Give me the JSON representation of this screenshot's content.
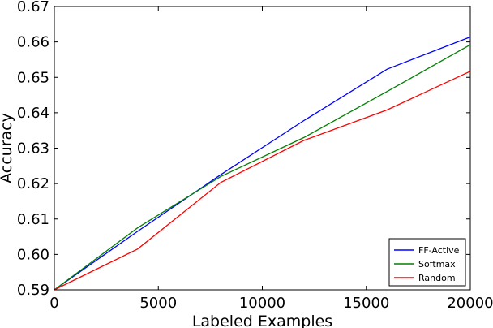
{
  "chart_data": {
    "type": "line",
    "title": "",
    "xlabel": "Labeled Examples",
    "ylabel": "Accuracy",
    "xlim": [
      0,
      20000
    ],
    "ylim": [
      0.59,
      0.67
    ],
    "xticks": [
      0,
      5000,
      10000,
      15000,
      20000
    ],
    "xtick_labels": [
      "0",
      "5000",
      "10000",
      "15000",
      "20000"
    ],
    "yticks": [
      0.59,
      0.6,
      0.61,
      0.62,
      0.63,
      0.64,
      0.65,
      0.66,
      0.67
    ],
    "ytick_labels": [
      "0.59",
      "0.60",
      "0.61",
      "0.62",
      "0.63",
      "0.64",
      "0.65",
      "0.66",
      "0.67"
    ],
    "grid": false,
    "legend_position": "lower-right",
    "x": [
      0,
      4000,
      8000,
      12000,
      16000,
      20000
    ],
    "series": [
      {
        "name": "FF-Active",
        "color": "#0000ff",
        "values": [
          0.59,
          0.6065,
          0.6225,
          0.6378,
          0.6523,
          0.6614
        ]
      },
      {
        "name": "Softmax",
        "color": "#008000",
        "values": [
          0.59,
          0.6075,
          0.622,
          0.633,
          0.646,
          0.6592
        ]
      },
      {
        "name": "Random",
        "color": "#ff0000",
        "values": [
          0.59,
          0.6015,
          0.6203,
          0.6322,
          0.6408,
          0.6517
        ]
      }
    ]
  }
}
